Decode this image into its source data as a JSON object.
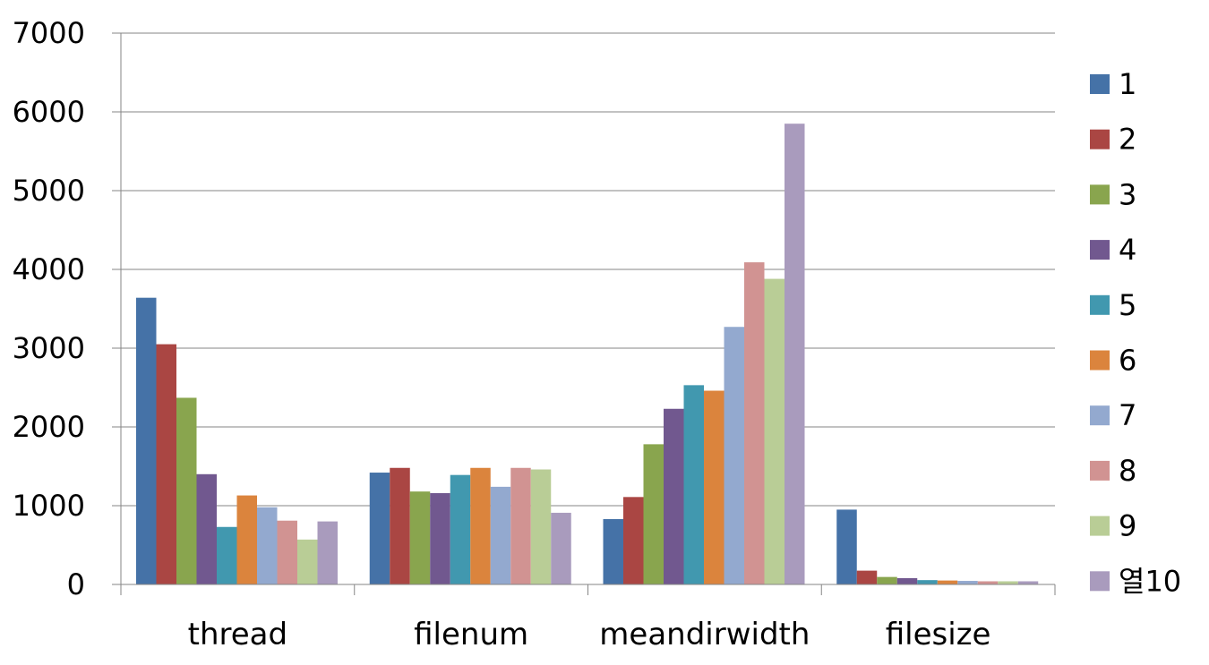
{
  "chart_data": {
    "type": "bar",
    "title": "",
    "xlabel": "",
    "ylabel": "",
    "categories": [
      "thread",
      "filenum",
      "meandirwidth",
      "filesize"
    ],
    "ylim": [
      0,
      7000
    ],
    "yticks": [
      "0",
      "1000",
      "2000",
      "3000",
      "4000",
      "5000",
      "6000",
      "7000"
    ],
    "grid": true,
    "legend_position": "right",
    "series": [
      {
        "name": "1",
        "color": "#4572A7",
        "values": [
          3640,
          1420,
          830,
          950
        ]
      },
      {
        "name": "2",
        "color": "#AA4643",
        "values": [
          3050,
          1480,
          1110,
          175
        ]
      },
      {
        "name": "3",
        "color": "#89A54E",
        "values": [
          2370,
          1180,
          1780,
          95
        ]
      },
      {
        "name": "4",
        "color": "#71588F",
        "values": [
          1400,
          1160,
          2230,
          80
        ]
      },
      {
        "name": "5",
        "color": "#4198AF",
        "values": [
          730,
          1390,
          2530,
          55
        ]
      },
      {
        "name": "6",
        "color": "#DB843D",
        "values": [
          1130,
          1480,
          2460,
          50
        ]
      },
      {
        "name": "7",
        "color": "#93A9CF",
        "values": [
          980,
          1240,
          3270,
          45
        ]
      },
      {
        "name": "8",
        "color": "#D19392",
        "values": [
          810,
          1480,
          4090,
          40
        ]
      },
      {
        "name": "9",
        "color": "#B9CD96",
        "values": [
          570,
          1460,
          3880,
          40
        ]
      },
      {
        "name": "열10",
        "color": "#A99BBD",
        "values": [
          800,
          910,
          5850,
          40
        ]
      }
    ]
  }
}
